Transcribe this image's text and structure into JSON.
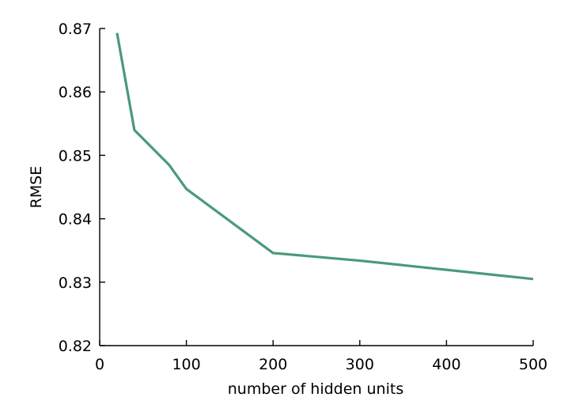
{
  "chart_data": {
    "type": "line",
    "xlabel": "number of hidden units",
    "ylabel": "RMSE",
    "xlim": [
      0,
      500
    ],
    "ylim": [
      0.82,
      0.87
    ],
    "xticks": [
      0,
      100,
      200,
      300,
      400,
      500
    ],
    "xtick_labels": [
      "0",
      "100",
      "200",
      "300",
      "400",
      "500"
    ],
    "yticks": [
      0.82,
      0.83,
      0.84,
      0.85,
      0.86,
      0.87
    ],
    "ytick_labels": [
      "0.82",
      "0.83",
      "0.84",
      "0.85",
      "0.86",
      "0.87"
    ],
    "grid": false,
    "series": [
      {
        "color": "#4a9a78",
        "x": [
          20,
          40,
          80,
          100,
          200,
          300,
          500
        ],
        "y": [
          0.8693,
          0.854,
          0.8485,
          0.8447,
          0.8346,
          0.8334,
          0.8305
        ]
      }
    ]
  }
}
